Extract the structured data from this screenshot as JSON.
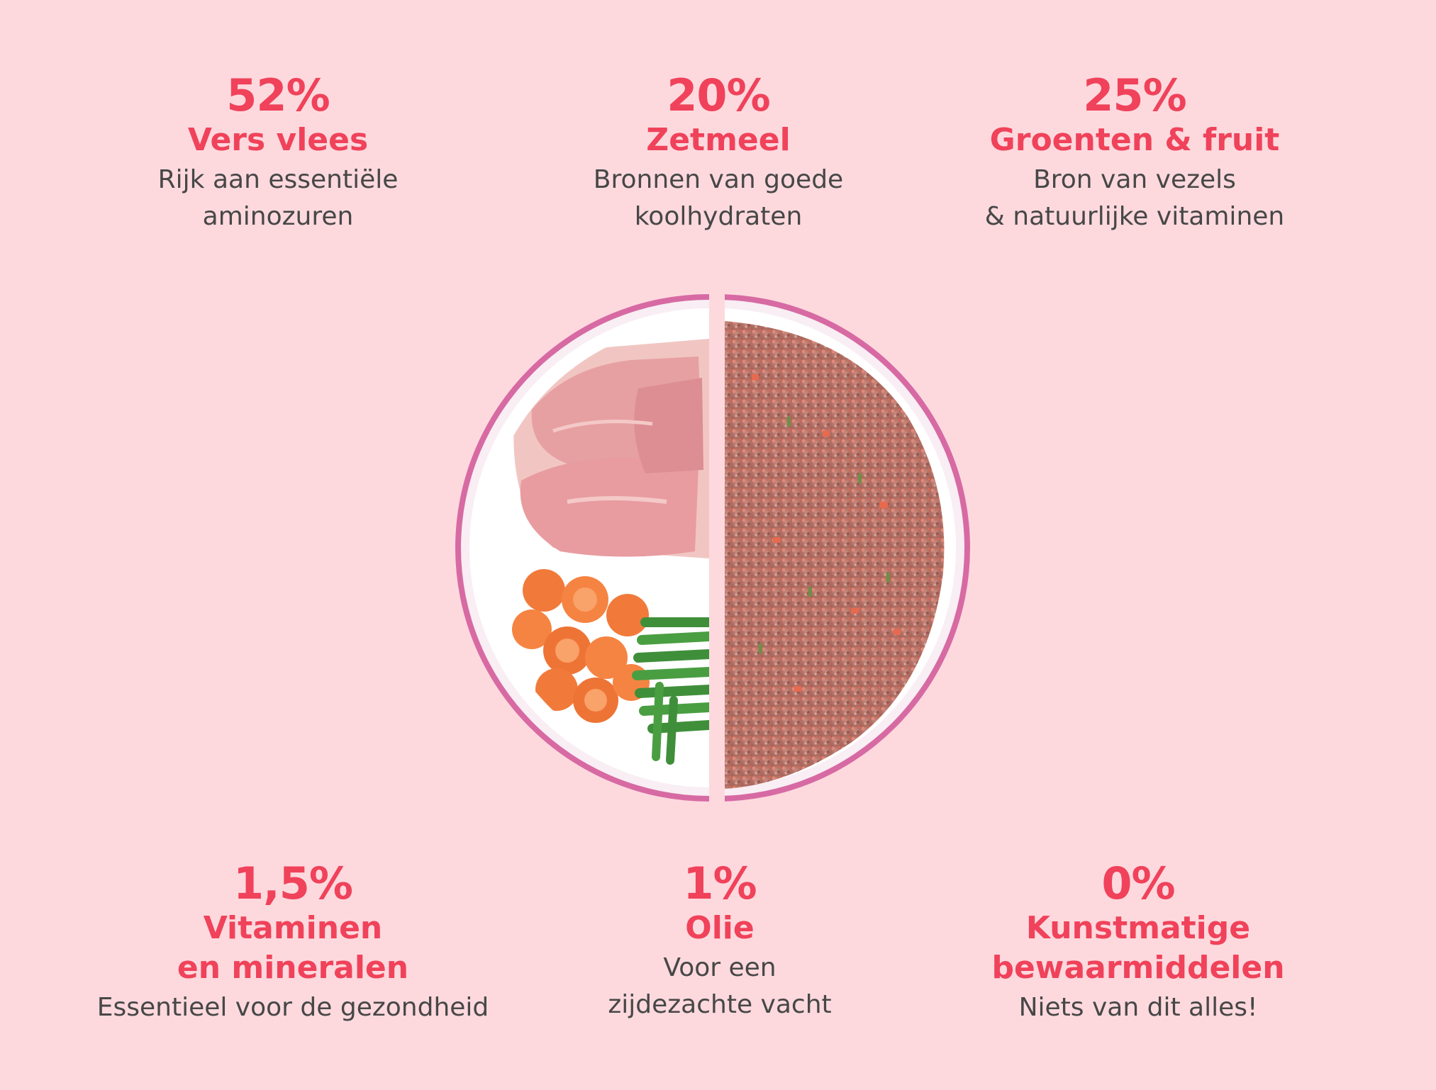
{
  "stats": [
    {
      "percent": "52%",
      "title_lines": [
        "Vers vlees"
      ],
      "desc_lines": [
        "Rijk aan essentiële",
        "aminozuren"
      ]
    },
    {
      "percent": "20%",
      "title_lines": [
        "Zetmeel"
      ],
      "desc_lines": [
        "Bronnen van goede",
        "koolhydraten"
      ]
    },
    {
      "percent": "25%",
      "title_lines": [
        "Groenten & fruit"
      ],
      "desc_lines": [
        "Bron van vezels",
        "& natuurlijke vitaminen"
      ]
    },
    {
      "percent": "1,5%",
      "title_lines": [
        "Vitaminen",
        "en mineralen"
      ],
      "desc_lines": [
        "Essentieel voor de gezondheid"
      ]
    },
    {
      "percent": "1%",
      "title_lines": [
        "Olie"
      ],
      "desc_lines": [
        "Voor een",
        "zijdezachte vacht"
      ]
    },
    {
      "percent": "0%",
      "title_lines": [
        "Kunstmatige",
        "bewaarmiddelen"
      ],
      "desc_lines": [
        "Niets van dit alles!"
      ]
    }
  ],
  "colors": {
    "background": "#fdd9de",
    "accent": "#f0425a",
    "body_text": "#474747",
    "bowl_rim": "#c2408f"
  }
}
